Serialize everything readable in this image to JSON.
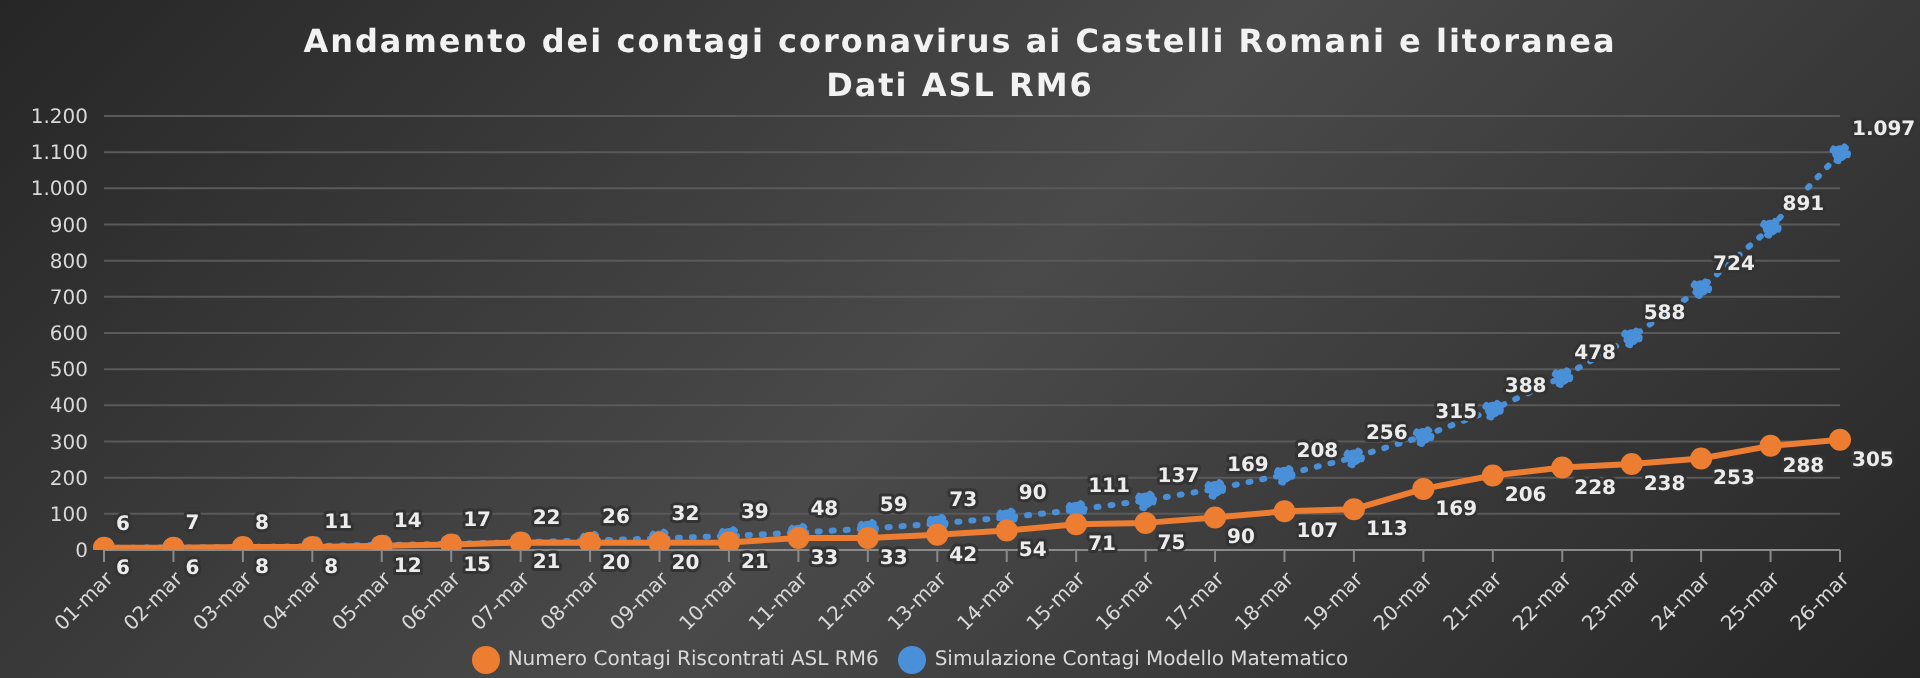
{
  "chart_data": {
    "type": "line",
    "title": "Andamento dei contagi coronavirus ai Castelli Romani e litoranea",
    "subtitle": "Dati ASL RM6",
    "categories": [
      "01-mar",
      "02-mar",
      "03-mar",
      "04-mar",
      "05-mar",
      "06-mar",
      "07-mar",
      "08-mar",
      "09-mar",
      "10-mar",
      "11-mar",
      "12-mar",
      "13-mar",
      "14-mar",
      "15-mar",
      "16-mar",
      "17-mar",
      "18-mar",
      "19-mar",
      "20-mar",
      "21-mar",
      "22-mar",
      "23-mar",
      "24-mar",
      "25-mar",
      "26-mar"
    ],
    "series": [
      {
        "name": "Simulazione Contagi Modello Matematico",
        "color": "#4a90d9",
        "line_style": "dotted",
        "marker": "circle",
        "values": [
          6,
          7,
          8,
          11,
          14,
          17,
          22,
          26,
          32,
          39,
          48,
          59,
          73,
          90,
          111,
          137,
          169,
          208,
          256,
          315,
          388,
          478,
          588,
          724,
          891,
          1097
        ],
        "value_labels": [
          "6",
          "7",
          "8",
          "11",
          "14",
          "17",
          "22",
          "26",
          "32",
          "39",
          "48",
          "59",
          "73",
          "90",
          "111",
          "137",
          "169",
          "208",
          "256",
          "315",
          "388",
          "478",
          "588",
          "724",
          "891",
          "1.097"
        ]
      },
      {
        "name": "Numero Contagi Riscontrati ASL RM6",
        "color": "#ed7d31",
        "line_style": "solid",
        "marker": "circle",
        "values": [
          6,
          6,
          8,
          8,
          12,
          15,
          21,
          20,
          20,
          21,
          33,
          33,
          42,
          54,
          71,
          75,
          90,
          107,
          113,
          169,
          206,
          228,
          238,
          253,
          288,
          305
        ],
        "value_labels": [
          "6",
          "6",
          "8",
          "8",
          "12",
          "15",
          "21",
          "20",
          "20",
          "21",
          "33",
          "33",
          "42",
          "54",
          "71",
          "75",
          "90",
          "107",
          "113",
          "169",
          "206",
          "228",
          "238",
          "253",
          "288",
          "305"
        ]
      }
    ],
    "ylim": [
      0,
      1200
    ],
    "yticks": [
      0,
      100,
      200,
      300,
      400,
      500,
      600,
      700,
      800,
      900,
      {
        "value": 1000,
        "label": "1.000"
      },
      {
        "value": 1100,
        "label": "1.100"
      },
      {
        "value": 1200,
        "label": "1.200"
      }
    ],
    "grid": "y",
    "legend": "bottom"
  }
}
